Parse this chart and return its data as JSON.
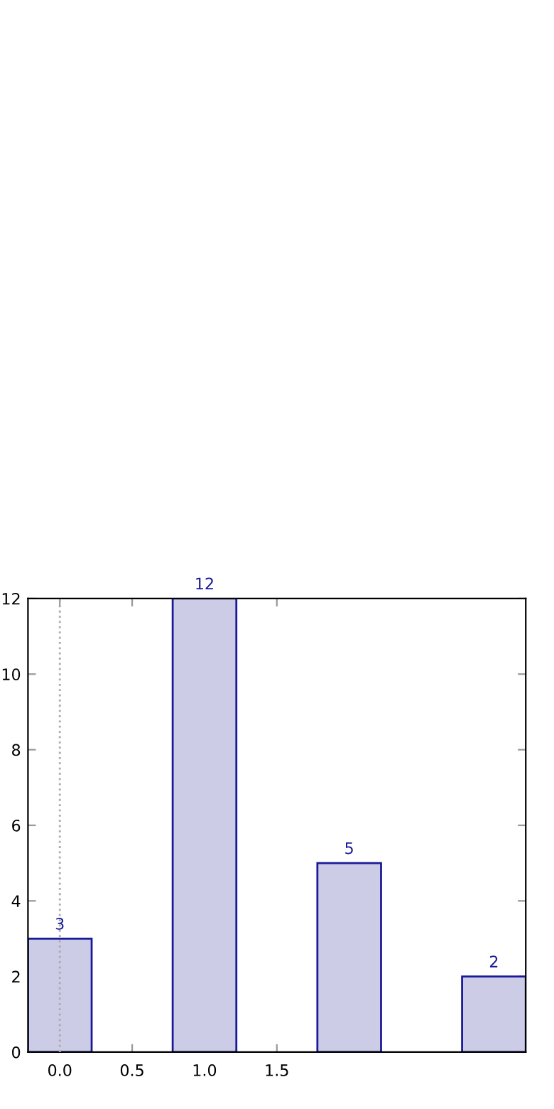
{
  "chart_data": {
    "type": "bar",
    "x": [
      0,
      1,
      2,
      3
    ],
    "values": [
      3,
      12,
      5,
      2
    ],
    "color": "#ccccE6",
    "data_labels": true,
    "xlim": [
      -0.22,
      3.22
    ],
    "xticks": [
      {
        "value": 0,
        "label": "0.0"
      },
      0.5,
      {
        "value": 1,
        "label": "1.0"
      },
      1.5
    ],
    "ylim": [
      0,
      12
    ],
    "yticks": [
      0,
      2,
      4,
      6,
      8,
      10,
      12
    ],
    "grid": false,
    "ref_lines": [
      {
        "axis": "x",
        "value": 0,
        "color": "#aaaaaa",
        "line_style": "dotted"
      }
    ]
  }
}
